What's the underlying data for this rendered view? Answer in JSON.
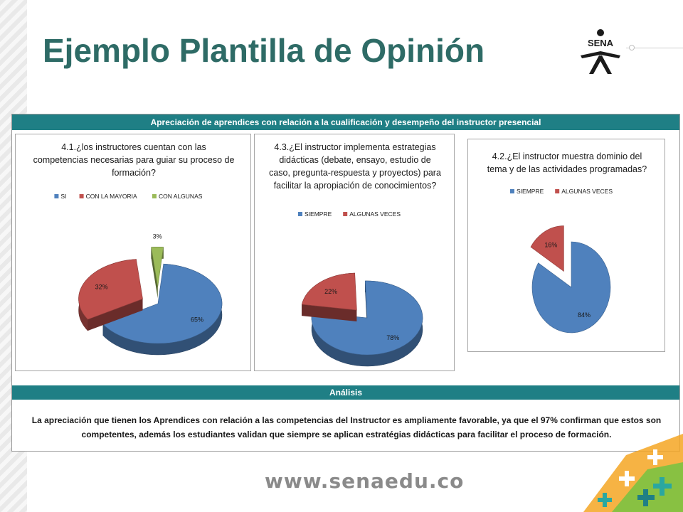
{
  "slide": {
    "title": "Ejemplo Plantilla de Opinión",
    "logo_text": "SENA",
    "footer_url": "www.senaedu.co"
  },
  "panel": {
    "header": "Apreciación de aprendices con relación a la cualificación y desempeño del instructor presencial",
    "analysis_header": "Análisis",
    "analysis_text": "La apreciación que tienen los Aprendices con relación a las competencias del Instructor es ampliamente favorable, ya que el 97% confirman que estos son competentes, además los estudiantes validan que siempre se aplican estratégias didácticas para facilitar el proceso de formación."
  },
  "colors": {
    "teal": "#1f7f85",
    "title_teal": "#2e6b66",
    "blue": "#4f81bd",
    "red": "#c0504d",
    "green": "#9bbb59"
  },
  "chart_data": [
    {
      "type": "pie",
      "title": "4.1.¿los instructores cuentan con las competencias necesarias para guiar su proceso de formación?",
      "title_lines": [
        "4.1.¿los instructores cuentan con las",
        "competencias necesarias para guiar su proceso de",
        "formación?"
      ],
      "categories": [
        "SI",
        "CON LA MAYORIA",
        "CON ALGUNAS"
      ],
      "values": [
        65,
        32,
        3
      ],
      "labels": [
        "65%",
        "32%",
        "3%"
      ],
      "colors": [
        "#4f81bd",
        "#c0504d",
        "#9bbb59"
      ],
      "legend": "top"
    },
    {
      "type": "pie",
      "title": "4.3.¿El instructor implementa estrategias didácticas (debate, ensayo, estudio de caso, pregunta-respuesta y proyectos) para facilitar la apropiación de conocimientos?",
      "title_lines": [
        "4.3.¿El instructor implementa estrategias",
        "didácticas (debate, ensayo, estudio de",
        "caso, pregunta-respuesta y proyectos) para",
        "facilitar la apropiación de conocimientos?"
      ],
      "categories": [
        "SIEMPRE",
        "ALGUNAS VECES"
      ],
      "values": [
        78,
        22
      ],
      "labels": [
        "78%",
        "22%"
      ],
      "colors": [
        "#4f81bd",
        "#c0504d"
      ],
      "legend": "top"
    },
    {
      "type": "pie",
      "title": "4.2.¿El instructor muestra dominio del tema y de las actividades programadas?",
      "title_lines": [
        "4.2.¿El instructor muestra dominio del",
        "tema y de las actividades programadas?"
      ],
      "categories": [
        "SIEMPRE",
        "ALGUNAS VECES"
      ],
      "values": [
        84,
        16
      ],
      "labels": [
        "84%",
        "16%"
      ],
      "colors": [
        "#4f81bd",
        "#c0504d"
      ],
      "legend": "top"
    }
  ]
}
